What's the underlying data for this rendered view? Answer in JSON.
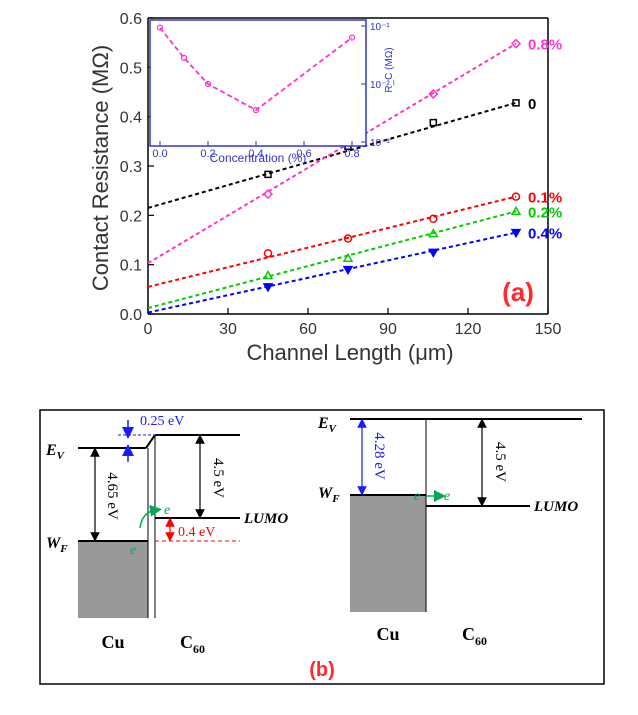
{
  "chart_data": {
    "type": "scatter",
    "panel_label": "(a)",
    "xlabel": "Channel Length (μm)",
    "ylabel": "Contact Resistance (MΩ)",
    "xlim": [
      0,
      150
    ],
    "ylim": [
      0.0,
      0.6
    ],
    "xticks": [
      "0",
      "30",
      "60",
      "90",
      "120",
      "150"
    ],
    "yticks": [
      "0.0",
      "0.1",
      "0.2",
      "0.3",
      "0.4",
      "0.5",
      "0.6"
    ],
    "x": [
      45,
      75,
      107,
      138
    ],
    "series": [
      {
        "name": "0",
        "color": "#000000",
        "marker": "square",
        "values": [
          0.283,
          0.34,
          0.388,
          0.428
        ],
        "fit": [
          0.215,
          0.428
        ]
      },
      {
        "name": "0.8%",
        "color": "#ff33cc",
        "marker": "diamond",
        "values": [
          0.243,
          0.35,
          0.446,
          0.548
        ],
        "fit": [
          0.103,
          0.548
        ]
      },
      {
        "name": "0.1%",
        "color": "#ff0000",
        "marker": "circle",
        "values": [
          0.123,
          0.153,
          0.193,
          0.238
        ],
        "fit": [
          0.055,
          0.238
        ]
      },
      {
        "name": "0.2%",
        "color": "#00cc00",
        "marker": "triangle-up",
        "values": [
          0.078,
          0.113,
          0.163,
          0.208
        ],
        "fit": [
          0.012,
          0.208
        ]
      },
      {
        "name": "0.4%",
        "color": "#0000ff",
        "marker": "triangle-down",
        "values": [
          0.055,
          0.09,
          0.125,
          0.165
        ],
        "fit": [
          0.003,
          0.165
        ]
      }
    ],
    "inset": {
      "xlabel": "Concentration (%)",
      "ylabel": "R_C (MΩ)",
      "color": "#ff33cc",
      "axis_color": "#3333cc",
      "xlim": [
        0.0,
        0.8
      ],
      "xticks": [
        "0.0",
        "0.2",
        "0.4",
        "0.6",
        "0.8"
      ],
      "ylog_range": [
        -3,
        -1
      ],
      "yticks": [
        "10⁻¹",
        "10⁻²",
        "10⁻³"
      ],
      "x": [
        0.0,
        0.1,
        0.2,
        0.4,
        0.8
      ],
      "log_values": [
        -1.03,
        -1.55,
        -2.0,
        -2.45,
        -1.2
      ]
    }
  },
  "diagram": {
    "panel_label": "(b)",
    "left": {
      "ev_label": "E",
      "ev_sub": "V",
      "wf_label": "W",
      "wf_sub": "F",
      "gap_label": "4.65 eV",
      "offset_label": "0.25 eV",
      "right_gap_label": "4.5 eV",
      "lumo_label": "LUMO",
      "barrier_label": "0.4 eV",
      "electron_1": "e",
      "electron_2": "e",
      "metal_label": "Cu",
      "semi_label": "C",
      "semi_sub": "60"
    },
    "right": {
      "ev_label": "E",
      "ev_sub": "V",
      "wf_label": "W",
      "wf_sub": "F",
      "gap_label": "4.28 eV",
      "right_gap_label": "4.5 eV",
      "lumo_label": "LUMO",
      "electron_1": "e",
      "electron_2": "e",
      "metal_label": "Cu",
      "semi_label": "C",
      "semi_sub": "60"
    }
  }
}
